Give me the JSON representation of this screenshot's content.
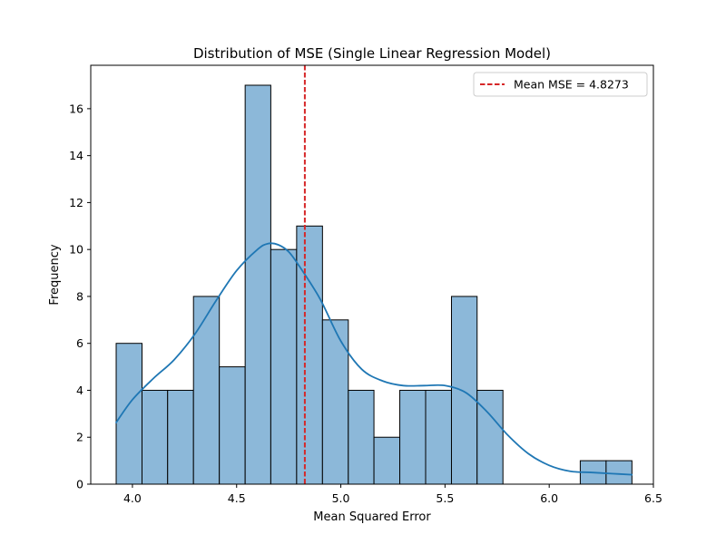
{
  "chart_data": {
    "type": "bar",
    "title": "Distribution of MSE (Single Linear Regression Model)",
    "xlabel": "Mean Squared Error",
    "ylabel": "Frequency",
    "xlim": [
      3.8,
      6.5
    ],
    "ylim": [
      0,
      17.85
    ],
    "xticks": [
      "4.0",
      "4.5",
      "5.0",
      "5.5",
      "6.0",
      "6.5"
    ],
    "yticks": [
      "0",
      "2",
      "4",
      "6",
      "8",
      "10",
      "12",
      "14",
      "16"
    ],
    "bins": [
      {
        "start": 3.922,
        "end": 4.046,
        "count": 6
      },
      {
        "start": 4.046,
        "end": 4.169,
        "count": 4
      },
      {
        "start": 4.169,
        "end": 4.293,
        "count": 4
      },
      {
        "start": 4.293,
        "end": 4.417,
        "count": 8
      },
      {
        "start": 4.417,
        "end": 4.541,
        "count": 5
      },
      {
        "start": 4.541,
        "end": 4.664,
        "count": 17
      },
      {
        "start": 4.664,
        "end": 4.788,
        "count": 10
      },
      {
        "start": 4.788,
        "end": 4.912,
        "count": 11
      },
      {
        "start": 4.912,
        "end": 5.036,
        "count": 7
      },
      {
        "start": 5.036,
        "end": 5.159,
        "count": 4
      },
      {
        "start": 5.159,
        "end": 5.283,
        "count": 2
      },
      {
        "start": 5.283,
        "end": 5.407,
        "count": 4
      },
      {
        "start": 5.407,
        "end": 5.531,
        "count": 4
      },
      {
        "start": 5.531,
        "end": 5.654,
        "count": 8
      },
      {
        "start": 5.654,
        "end": 5.778,
        "count": 4
      },
      {
        "start": 5.778,
        "end": 5.902,
        "count": 0
      },
      {
        "start": 5.902,
        "end": 6.026,
        "count": 0
      },
      {
        "start": 6.026,
        "end": 6.149,
        "count": 0
      },
      {
        "start": 6.149,
        "end": 6.273,
        "count": 1
      },
      {
        "start": 6.273,
        "end": 6.397,
        "count": 1
      }
    ],
    "kde": {
      "x": [
        3.92,
        4.0,
        4.1,
        4.2,
        4.3,
        4.4,
        4.5,
        4.6,
        4.65,
        4.7,
        4.75,
        4.8,
        4.9,
        5.0,
        5.1,
        5.2,
        5.3,
        5.4,
        5.5,
        5.6,
        5.7,
        5.8,
        5.9,
        6.0,
        6.1,
        6.2,
        6.3,
        6.4
      ],
      "y": [
        2.6,
        3.6,
        4.5,
        5.3,
        6.4,
        7.8,
        9.1,
        10.0,
        10.25,
        10.2,
        9.9,
        9.3,
        7.9,
        6.1,
        4.9,
        4.4,
        4.2,
        4.2,
        4.2,
        3.9,
        3.1,
        2.1,
        1.3,
        0.8,
        0.55,
        0.5,
        0.45,
        0.4
      ]
    },
    "mean_line": {
      "value": 4.8273,
      "label": "Mean MSE = 4.8273",
      "color": "#d62728",
      "style": "dashed"
    },
    "legend": {
      "position": "top-right"
    },
    "grid": false,
    "colors": {
      "bar_fill": "#8cb8d9",
      "bar_edge": "#000000",
      "kde_line": "#1f77b4"
    }
  }
}
